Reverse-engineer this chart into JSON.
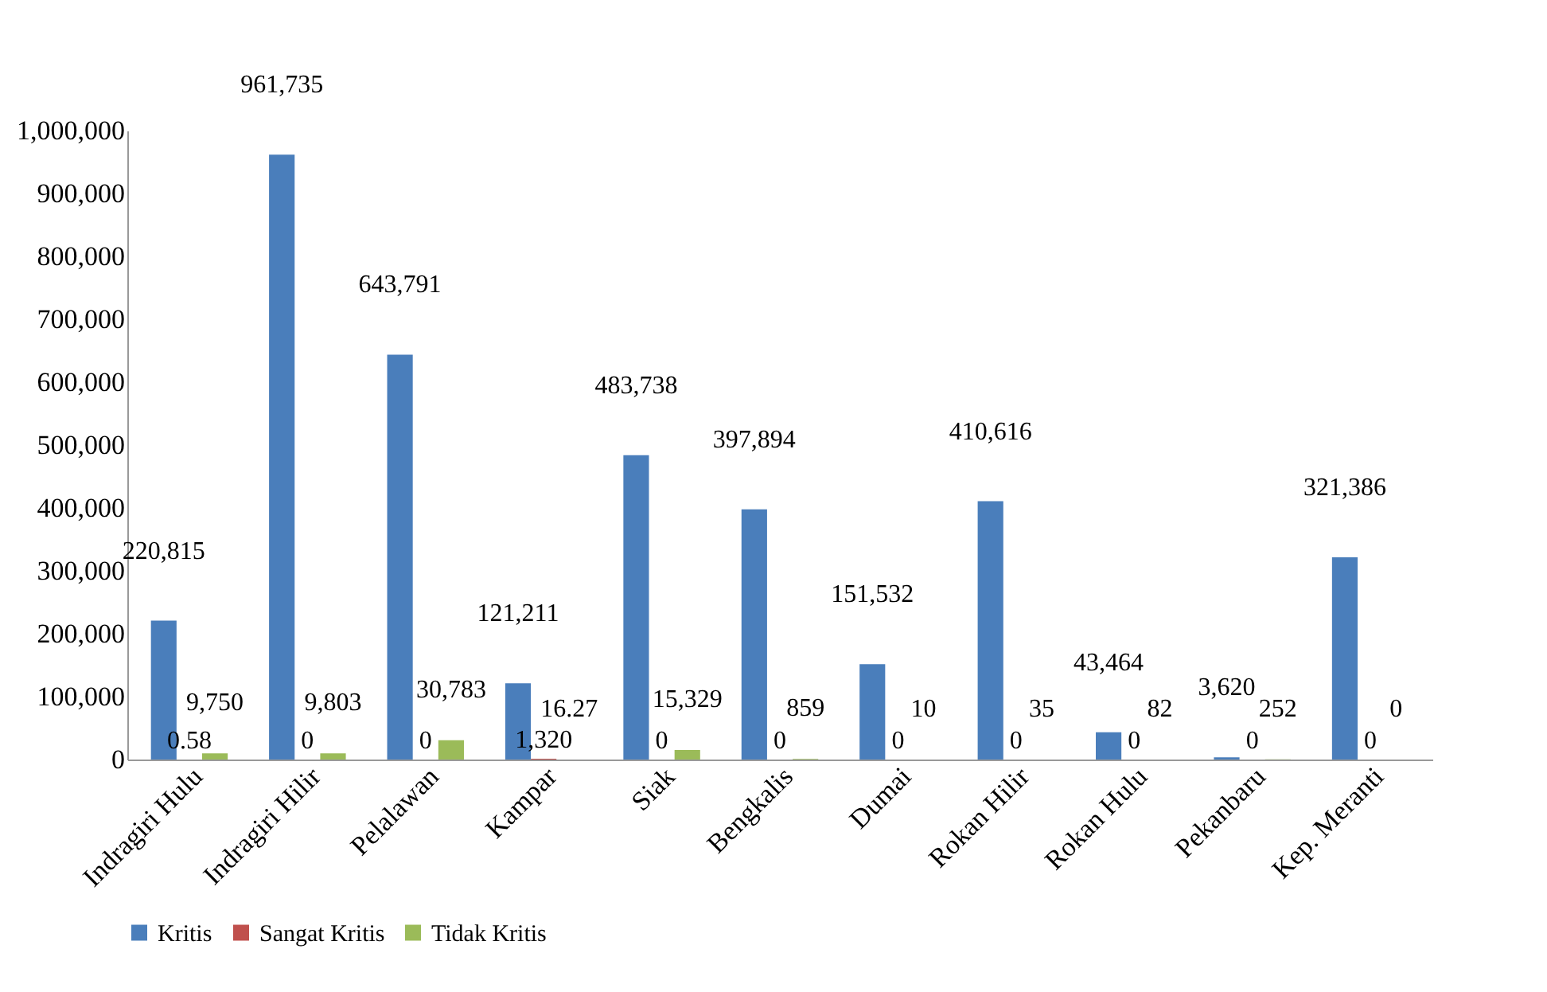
{
  "chart_data": {
    "type": "bar",
    "categories": [
      "Indragiri Hulu",
      "Indragiri Hilir",
      "Pelalawan",
      "Kampar",
      "Siak",
      "Bengkalis",
      "Dumai",
      "Rokan Hilir",
      "Rokan Hulu",
      "Pekanbaru",
      "Kep. Meranti"
    ],
    "series": [
      {
        "name": "Kritis",
        "color": "#4a7ebb",
        "values": [
          220815,
          961735,
          643791,
          121211,
          483738,
          397894,
          151532,
          410616,
          43464,
          3620,
          321386
        ],
        "value_labels": [
          "220,815",
          "961,735",
          "643,791",
          "121,211",
          "483,738",
          "397,894",
          "151,532",
          "410,616",
          "43,464",
          "3,620",
          "321,386"
        ]
      },
      {
        "name": "Sangat Kritis",
        "color": "#c0504d",
        "values": [
          0.58,
          0,
          0,
          1320,
          0,
          0,
          0,
          0,
          0,
          0,
          0
        ],
        "value_labels": [
          "0.58",
          "0",
          "0",
          "1,320",
          "0",
          "0",
          "0",
          "0",
          "0",
          "0",
          "0"
        ]
      },
      {
        "name": "Tidak Kritis",
        "color": "#9bbb59",
        "values": [
          9750,
          9803,
          30783,
          16.27,
          15329,
          859,
          10,
          35,
          82,
          252,
          0
        ],
        "value_labels": [
          "9,750",
          "9,803",
          "30,783",
          "16.27",
          "15,329",
          "859",
          "10",
          "35",
          "82",
          "252",
          "0"
        ]
      }
    ],
    "ylim": [
      0,
      1000000
    ],
    "yticks": [
      {
        "value": 0,
        "label": "0"
      },
      {
        "value": 100000,
        "label": "100,000"
      },
      {
        "value": 200000,
        "label": "200,000"
      },
      {
        "value": 300000,
        "label": "300,000"
      },
      {
        "value": 400000,
        "label": "400,000"
      },
      {
        "value": 500000,
        "label": "500,000"
      },
      {
        "value": 600000,
        "label": "600,000"
      },
      {
        "value": 700000,
        "label": "700,000"
      },
      {
        "value": 800000,
        "label": "800,000"
      },
      {
        "value": 900000,
        "label": "900,000"
      },
      {
        "value": 1000000,
        "label": "1,000,000"
      }
    ],
    "grid": false,
    "legend": "bottom"
  }
}
